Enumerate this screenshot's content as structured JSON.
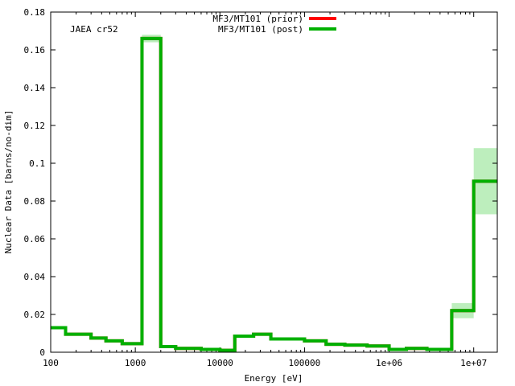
{
  "chart_data": {
    "type": "line",
    "annotation": "JAEA cr52",
    "xlabel": "Energy [eV]",
    "ylabel": "Nuclear Data [barns/no-dim]",
    "x_scale": "log",
    "xlim": [
      100,
      19000000
    ],
    "ylim": [
      0,
      0.18
    ],
    "grid": false,
    "legend_position": "top-center",
    "x_ticks": [
      {
        "value": 100,
        "label": "100"
      },
      {
        "value": 1000,
        "label": "1000"
      },
      {
        "value": 10000,
        "label": "10000"
      },
      {
        "value": 100000,
        "label": "100000"
      },
      {
        "value": 1000000,
        "label": "1e+06"
      },
      {
        "value": 10000000,
        "label": "1e+07"
      }
    ],
    "y_ticks": [
      {
        "value": 0,
        "label": "0"
      },
      {
        "value": 0.02,
        "label": "0.02"
      },
      {
        "value": 0.04,
        "label": "0.04"
      },
      {
        "value": 0.06,
        "label": "0.06"
      },
      {
        "value": 0.08,
        "label": "0.08"
      },
      {
        "value": 0.1,
        "label": "0.1"
      },
      {
        "value": 0.12,
        "label": "0.12"
      },
      {
        "value": 0.14,
        "label": "0.14"
      },
      {
        "value": 0.16,
        "label": "0.16"
      },
      {
        "value": 0.18,
        "label": "0.18"
      }
    ],
    "series": [
      {
        "name": "MF3/MT101 (prior)",
        "color": "#ff0000",
        "bins": [
          {
            "x0": 100,
            "x1": 150,
            "y": 0.013
          },
          {
            "x0": 150,
            "x1": 300,
            "y": 0.0095
          },
          {
            "x0": 300,
            "x1": 450,
            "y": 0.0075
          },
          {
            "x0": 450,
            "x1": 700,
            "y": 0.006
          },
          {
            "x0": 700,
            "x1": 1200,
            "y": 0.0045
          },
          {
            "x0": 1200,
            "x1": 2000,
            "y": 0.166
          },
          {
            "x0": 2000,
            "x1": 3000,
            "y": 0.003
          },
          {
            "x0": 3000,
            "x1": 6000,
            "y": 0.002
          },
          {
            "x0": 6000,
            "x1": 10000,
            "y": 0.0015
          },
          {
            "x0": 10000,
            "x1": 15000,
            "y": 0.001
          },
          {
            "x0": 15000,
            "x1": 25000,
            "y": 0.0085
          },
          {
            "x0": 25000,
            "x1": 40000,
            "y": 0.0095
          },
          {
            "x0": 40000,
            "x1": 100000,
            "y": 0.007
          },
          {
            "x0": 100000,
            "x1": 180000,
            "y": 0.006
          },
          {
            "x0": 180000,
            "x1": 300000,
            "y": 0.0042
          },
          {
            "x0": 300000,
            "x1": 550000,
            "y": 0.0038
          },
          {
            "x0": 550000,
            "x1": 1000000,
            "y": 0.0033
          },
          {
            "x0": 1000000,
            "x1": 1600000,
            "y": 0.0015
          },
          {
            "x0": 1600000,
            "x1": 2800000,
            "y": 0.002
          },
          {
            "x0": 2800000,
            "x1": 5500000,
            "y": 0.0015
          },
          {
            "x0": 5500000,
            "x1": 10000000,
            "y": 0.022
          },
          {
            "x0": 10000000,
            "x1": 19000000,
            "y": 0.0905
          }
        ]
      },
      {
        "name": "MF3/MT101 (post)",
        "color": "#00b000",
        "band_color": "#bdeebd",
        "bins": [
          {
            "x0": 100,
            "x1": 150,
            "y": 0.013,
            "lo": 0.013,
            "hi": 0.013
          },
          {
            "x0": 150,
            "x1": 300,
            "y": 0.0095,
            "lo": 0.0095,
            "hi": 0.0095
          },
          {
            "x0": 300,
            "x1": 450,
            "y": 0.0075,
            "lo": 0.0075,
            "hi": 0.0075
          },
          {
            "x0": 450,
            "x1": 700,
            "y": 0.006,
            "lo": 0.006,
            "hi": 0.006
          },
          {
            "x0": 700,
            "x1": 1200,
            "y": 0.0045,
            "lo": 0.0045,
            "hi": 0.0045
          },
          {
            "x0": 1200,
            "x1": 2000,
            "y": 0.166,
            "lo": 0.164,
            "hi": 0.168
          },
          {
            "x0": 2000,
            "x1": 3000,
            "y": 0.003,
            "lo": 0.003,
            "hi": 0.003
          },
          {
            "x0": 3000,
            "x1": 6000,
            "y": 0.002,
            "lo": 0.002,
            "hi": 0.002
          },
          {
            "x0": 6000,
            "x1": 10000,
            "y": 0.0015,
            "lo": 0.0015,
            "hi": 0.0015
          },
          {
            "x0": 10000,
            "x1": 15000,
            "y": 0.001,
            "lo": 0.001,
            "hi": 0.001
          },
          {
            "x0": 15000,
            "x1": 25000,
            "y": 0.0085,
            "lo": 0.0085,
            "hi": 0.0085
          },
          {
            "x0": 25000,
            "x1": 40000,
            "y": 0.0095,
            "lo": 0.0095,
            "hi": 0.0095
          },
          {
            "x0": 40000,
            "x1": 100000,
            "y": 0.007,
            "lo": 0.007,
            "hi": 0.007
          },
          {
            "x0": 100000,
            "x1": 180000,
            "y": 0.006,
            "lo": 0.006,
            "hi": 0.006
          },
          {
            "x0": 180000,
            "x1": 300000,
            "y": 0.0042,
            "lo": 0.0042,
            "hi": 0.0042
          },
          {
            "x0": 300000,
            "x1": 550000,
            "y": 0.0038,
            "lo": 0.0038,
            "hi": 0.0038
          },
          {
            "x0": 550000,
            "x1": 1000000,
            "y": 0.0033,
            "lo": 0.0033,
            "hi": 0.0033
          },
          {
            "x0": 1000000,
            "x1": 1600000,
            "y": 0.0015,
            "lo": 0.0015,
            "hi": 0.0015
          },
          {
            "x0": 1600000,
            "x1": 2800000,
            "y": 0.002,
            "lo": 0.002,
            "hi": 0.002
          },
          {
            "x0": 2800000,
            "x1": 5500000,
            "y": 0.0015,
            "lo": 0.0015,
            "hi": 0.0015
          },
          {
            "x0": 5500000,
            "x1": 10000000,
            "y": 0.022,
            "lo": 0.018,
            "hi": 0.026
          },
          {
            "x0": 10000000,
            "x1": 19000000,
            "y": 0.0905,
            "lo": 0.073,
            "hi": 0.108
          }
        ]
      }
    ]
  }
}
